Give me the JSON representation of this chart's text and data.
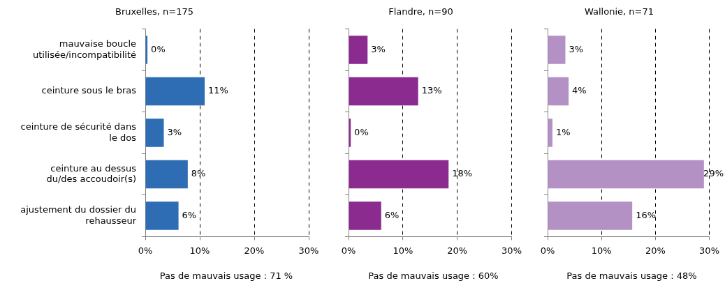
{
  "chart_data": [
    {
      "type": "bar",
      "orientation": "horizontal",
      "title": "Bruxelles, n=175",
      "categories": [
        "mauvaise boucle utilisée/incompatibilité",
        "ceinture sous le bras",
        "ceinture de sécurité dans le dos",
        "ceinture au dessus du/des accoudoir(s)",
        "ajustement du dossier du rehausseur"
      ],
      "values": [
        0.4,
        10.9,
        3.4,
        7.8,
        6.1
      ],
      "value_labels": [
        "0%",
        "11%",
        "3%",
        "8%",
        "6%"
      ],
      "color": "#2e6db4",
      "xlim": [
        0,
        30
      ],
      "xticks": [
        {
          "value": 0,
          "label": "0%"
        },
        {
          "value": 10,
          "label": "10%"
        },
        {
          "value": 20,
          "label": "20%"
        },
        {
          "value": 30,
          "label": "30%"
        }
      ],
      "grid": "x",
      "annotations": [
        "Pas de mauvais usage : 71 %"
      ]
    },
    {
      "type": "bar",
      "orientation": "horizontal",
      "title": "Flandre, n=90",
      "categories": [
        null,
        null,
        null,
        null,
        null
      ],
      "values": [
        3.5,
        12.8,
        0.4,
        18.4,
        6.0
      ],
      "value_labels": [
        "3%",
        "13%",
        "0%",
        "18%",
        "6%"
      ],
      "color": "#8b2a8f",
      "xlim": [
        0,
        30
      ],
      "xticks": [
        {
          "value": 0,
          "label": "0%"
        },
        {
          "value": 10,
          "label": "10%"
        },
        {
          "value": 20,
          "label": "20%"
        },
        {
          "value": 30,
          "label": "30%"
        }
      ],
      "grid": "x",
      "tick_labels": "x",
      "annotations": [
        "Pas de mauvais usage : 60%"
      ]
    },
    {
      "type": "bar",
      "orientation": "horizontal",
      "title": "Wallonie, n=71",
      "categories": [
        null,
        null,
        null,
        null,
        null
      ],
      "values": [
        3.3,
        3.9,
        0.9,
        29.0,
        15.7
      ],
      "value_labels": [
        "3%",
        "4%",
        "1%",
        "29%",
        "16%"
      ],
      "color": "#b491c4",
      "xlim": [
        0,
        30
      ],
      "xticks": [
        {
          "value": 0,
          "label": "0%"
        },
        {
          "value": 10,
          "label": "10%"
        },
        {
          "value": 20,
          "label": "20%"
        },
        {
          "value": 30,
          "label": "30%"
        }
      ],
      "grid": "x",
      "tick_labels": "x",
      "annotations": [
        "Pas de mauvais usage : 48%"
      ]
    }
  ]
}
